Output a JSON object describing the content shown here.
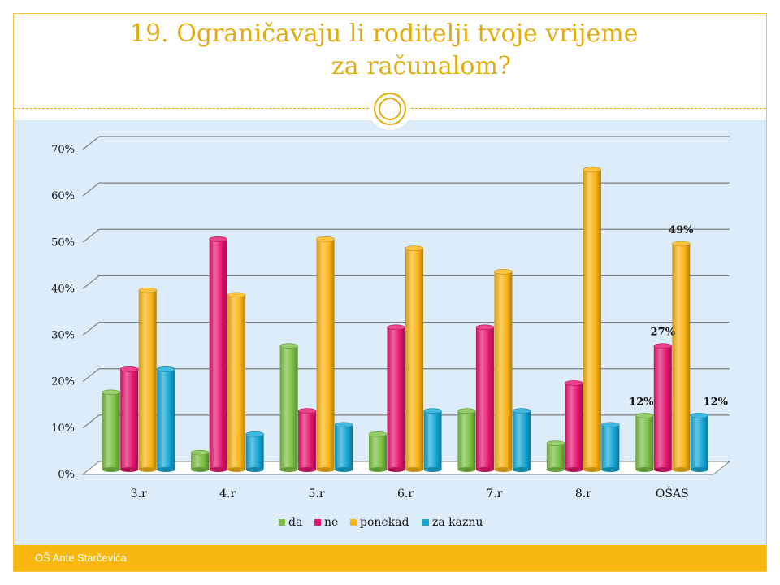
{
  "title": {
    "line1": "19. Ograničavaju li roditelji tvoje vrijeme",
    "line2": "za računalom?"
  },
  "footer": {
    "text": "OŠ Ante Starčevića"
  },
  "chart_data": {
    "type": "bar",
    "categories": [
      "3.r",
      "4.r",
      "5.r",
      "6.r",
      "7.r",
      "8.r",
      "OŠAS"
    ],
    "series": [
      {
        "name": "da",
        "color": "#7ac143",
        "values": [
          17,
          4,
          27,
          8,
          13,
          6,
          12
        ]
      },
      {
        "name": "ne",
        "color": "#e6156f",
        "values": [
          22,
          50,
          13,
          31,
          31,
          19,
          27
        ]
      },
      {
        "name": "ponekad",
        "color": "#fbb414",
        "values": [
          39,
          38,
          50,
          48,
          43,
          65,
          49
        ]
      },
      {
        "name": "za kaznu",
        "color": "#13a7d6",
        "values": [
          22,
          8,
          10,
          13,
          13,
          10,
          12
        ]
      }
    ],
    "yticks": [
      "0%",
      "10%",
      "20%",
      "30%",
      "40%",
      "50%",
      "60%",
      "70%"
    ],
    "ylim": [
      0,
      70
    ],
    "grid": true,
    "legend_position": "bottom",
    "data_labels": [
      {
        "category": "OŠAS",
        "series": "da",
        "text": "12%"
      },
      {
        "category": "OŠAS",
        "series": "ne",
        "text": "27%"
      },
      {
        "category": "OŠAS",
        "series": "ponekad",
        "text": "49%"
      },
      {
        "category": "OŠAS",
        "series": "za kaznu",
        "text": "12%"
      }
    ]
  }
}
